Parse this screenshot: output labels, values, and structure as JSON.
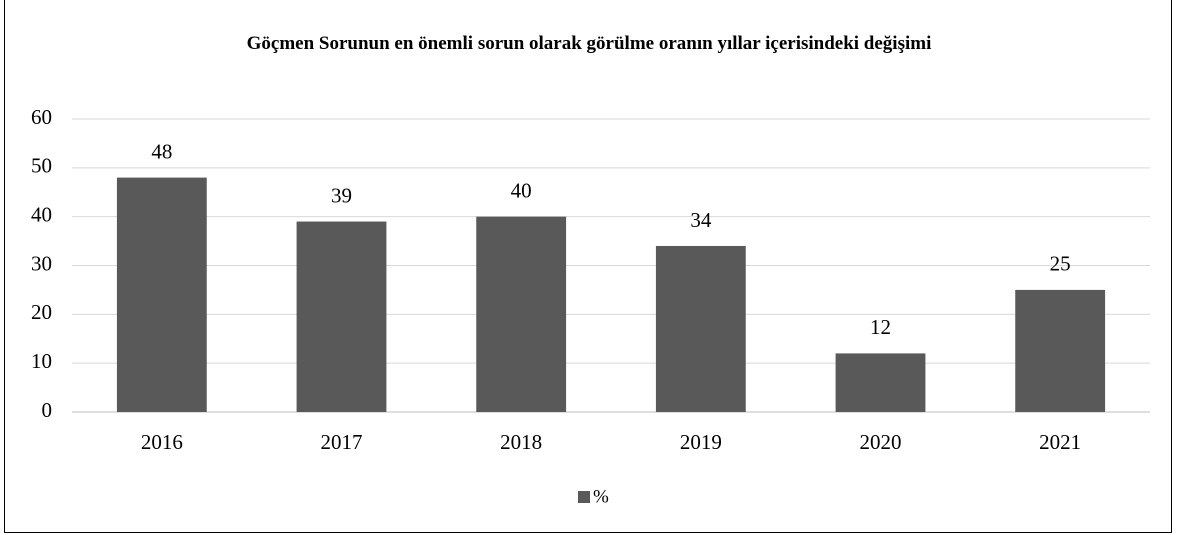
{
  "chart_data": {
    "type": "bar",
    "title": "Göçmen Sorunun en önemli sorun olarak görülme oranın yıllar içerisindeki değişimi",
    "categories": [
      "2016",
      "2017",
      "2018",
      "2019",
      "2020",
      "2021"
    ],
    "series": [
      {
        "name": "%",
        "color": "#595959",
        "values": [
          48,
          39,
          40,
          34,
          12,
          25
        ]
      }
    ],
    "ylim": [
      0,
      60
    ],
    "yticks": [
      0,
      10,
      20,
      30,
      40,
      50,
      60
    ],
    "grid": true,
    "legend": "bottom"
  }
}
